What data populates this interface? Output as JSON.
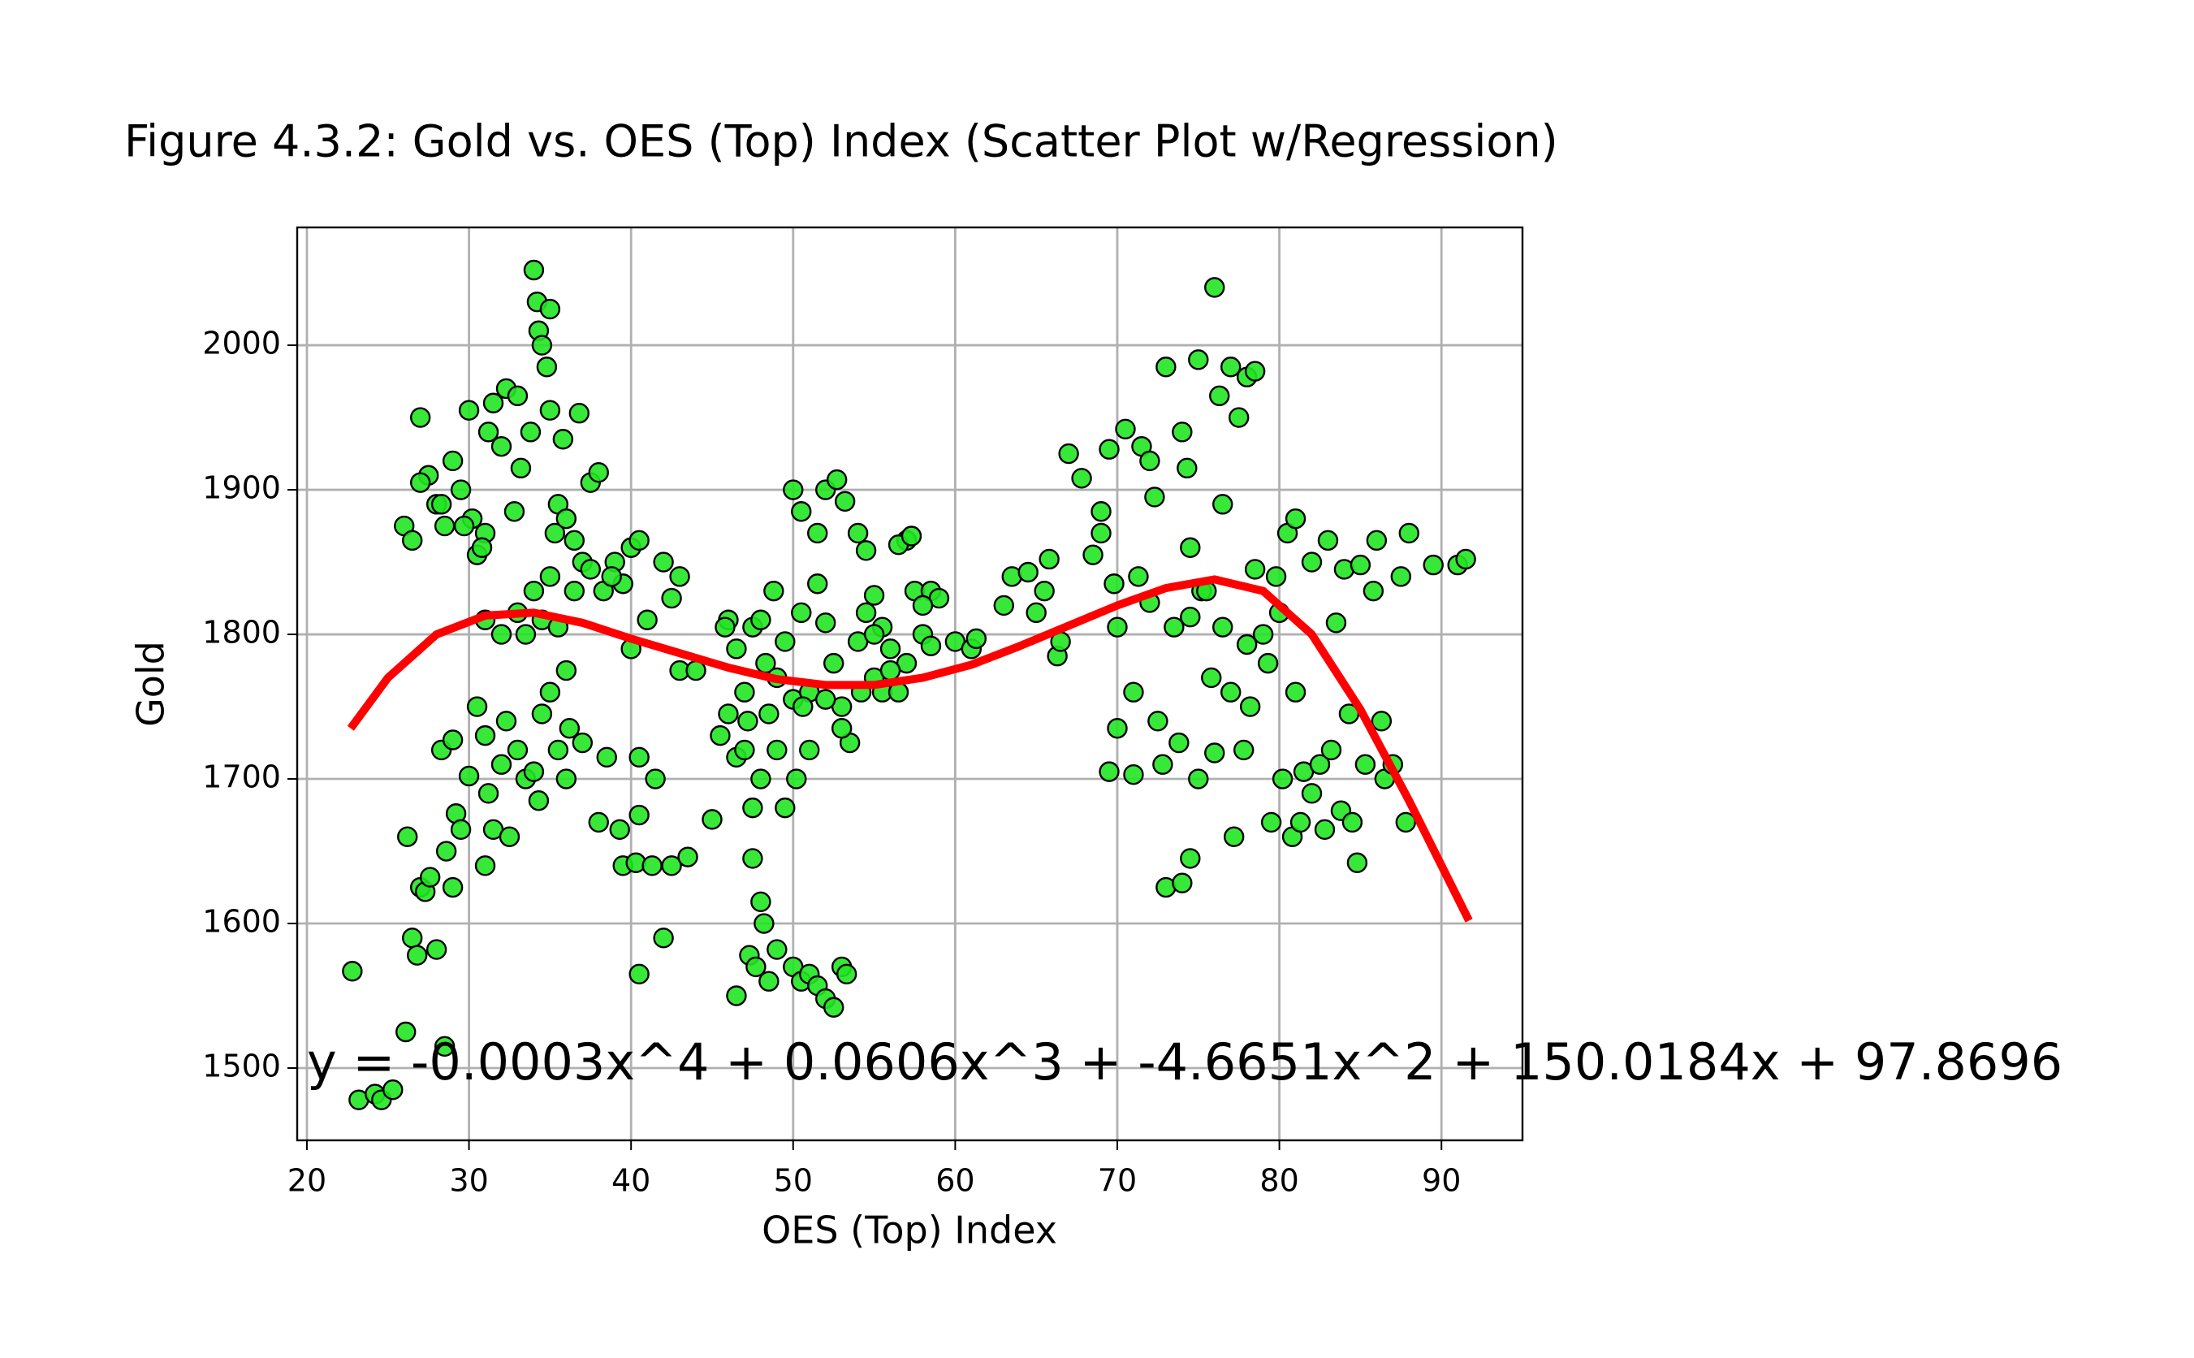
{
  "chart_data": {
    "type": "scatter",
    "title": "Figure 4.3.2: Gold vs. OES (Top) Index (Scatter Plot w/Regression)",
    "x_label": "OES (Top) Index",
    "y_label": "Gold",
    "annotation": "y = -0.0003x^4 + 0.0606x^3 + -4.6651x^2 + 150.0184x + 97.8696",
    "annotation_color": "#0000ff",
    "xlim": [
      19.4,
      95.0
    ],
    "ylim": [
      1450,
      2081.5
    ],
    "xticks": [
      20,
      30,
      40,
      50,
      60,
      70,
      80,
      90
    ],
    "yticks": [
      1500,
      1600,
      1700,
      1800,
      1900,
      2000
    ],
    "grid": true,
    "series": [
      {
        "type": "scatter",
        "color": "#22e622",
        "edge_color": "#000000",
        "x": [
          22.8,
          23.2,
          24.2,
          24.6,
          25.3,
          26.1,
          26.2,
          26.5,
          26.8,
          27,
          27.3,
          27.6,
          28,
          28.5,
          28.6,
          29,
          29.2,
          29.5,
          28.3,
          29,
          30,
          30.5,
          31,
          31.2,
          31.5,
          31,
          32,
          32.5,
          32.3,
          33,
          33.5,
          34,
          34.3,
          34.5,
          35,
          35.5,
          36,
          36.2,
          37,
          38,
          38.5,
          26,
          26.5,
          27,
          27.5,
          28,
          28.5,
          29,
          29.5,
          30,
          30.2,
          30.5,
          31,
          31.2,
          31.5,
          32,
          32.3,
          32.8,
          33,
          33.2,
          33.8,
          34,
          34.2,
          34.3,
          34.5,
          34.8,
          35,
          35,
          35.3,
          35.5,
          35.8,
          36,
          36.5,
          36.8,
          37,
          37.5,
          38,
          38.3,
          39,
          39.5,
          40,
          40.5,
          41,
          42,
          42.5,
          43,
          33,
          33.5,
          34,
          34.5,
          35,
          35.5,
          36,
          36.5,
          32,
          31,
          27,
          28.3,
          29.7,
          30.8,
          37.5,
          38.8,
          40,
          40.5,
          40.5,
          39.5,
          40.3,
          41.3,
          42,
          42.5,
          43.5,
          41.5,
          40.5,
          39.3,
          43,
          44,
          45,
          45.5,
          46,
          46.5,
          46.5,
          47,
          47.5,
          47.2,
          48,
          48.3,
          48.8,
          49,
          49.5,
          50,
          50.5,
          51,
          51.5,
          52,
          52.5,
          53,
          53.5,
          54,
          54.5,
          55,
          55.5,
          56,
          56.5,
          57,
          57.5,
          58,
          58.5,
          59,
          50,
          50.5,
          51.5,
          52,
          52.7,
          53.2,
          54,
          54.5,
          55,
          56.5,
          57.3,
          58,
          48,
          49.5,
          50.2,
          47.5,
          48,
          48.2,
          47.3,
          47.7,
          48.5,
          49,
          50,
          50.5,
          51,
          51.5,
          52,
          52.5,
          53,
          53.3,
          46.5,
          47.5,
          46,
          49,
          51,
          53,
          55.5,
          57,
          60,
          61,
          61.3,
          56,
          54.2,
          52,
          50.6,
          48.5,
          47,
          45.8,
          58.5,
          55,
          63,
          63.5,
          64.5,
          65,
          65.5,
          65.8,
          66.3,
          66.5,
          67,
          67.8,
          68.5,
          69,
          69,
          69.5,
          69.8,
          70,
          69.5,
          70,
          70.5,
          71,
          71,
          71.3,
          71.5,
          72,
          72.3,
          72.5,
          72.8,
          73,
          73,
          73.5,
          73.8,
          74,
          74,
          74.3,
          74.5,
          74.5,
          75,
          75,
          75.2,
          75.5,
          75.8,
          76,
          76,
          76.3,
          76.5,
          77,
          77,
          77.2,
          77.5,
          77.8,
          78,
          78.2,
          78.5,
          78.5,
          79,
          79.3,
          79.5,
          80,
          80.2,
          80.5,
          80.8,
          81,
          81,
          81.3,
          81.5,
          82,
          82.5,
          82.8,
          83,
          83.2,
          83.5,
          83.8,
          84,
          84.3,
          84.5,
          84.8,
          85,
          85.3,
          85.8,
          86,
          86.3,
          86.5,
          87,
          87.5,
          87.8,
          88,
          89.5,
          91,
          91.5,
          72,
          74.5,
          76.5,
          78,
          79.8,
          82
        ],
        "values": [
          1567,
          1478,
          1482,
          1478,
          1485,
          1525,
          1660,
          1590,
          1578,
          1625,
          1622,
          1632,
          1582,
          1515,
          1650,
          1625,
          1676,
          1665,
          1720,
          1727,
          1702,
          1750,
          1730,
          1690,
          1665,
          1640,
          1710,
          1660,
          1740,
          1720,
          1700,
          1705,
          1685,
          1745,
          1760,
          1720,
          1700,
          1735,
          1725,
          1670,
          1715,
          1875,
          1865,
          1950,
          1910,
          1890,
          1875,
          1920,
          1900,
          1955,
          1880,
          1855,
          1870,
          1940,
          1960,
          1930,
          1970,
          1885,
          1965,
          1915,
          1940,
          2052,
          2030,
          2010,
          2000,
          1985,
          2025,
          1955,
          1870,
          1890,
          1935,
          1880,
          1865,
          1953,
          1850,
          1905,
          1912,
          1830,
          1850,
          1835,
          1860,
          1865,
          1810,
          1850,
          1825,
          1840,
          1815,
          1800,
          1830,
          1810,
          1840,
          1805,
          1775,
          1830,
          1800,
          1810,
          1905,
          1890,
          1875,
          1860,
          1845,
          1840,
          1790,
          1715,
          1565,
          1640,
          1642,
          1640,
          1590,
          1640,
          1646,
          1700,
          1675,
          1665,
          1775,
          1775,
          1672,
          1730,
          1745,
          1715,
          1790,
          1760,
          1805,
          1740,
          1810,
          1780,
          1830,
          1720,
          1795,
          1755,
          1815,
          1760,
          1835,
          1808,
          1780,
          1750,
          1725,
          1795,
          1815,
          1770,
          1760,
          1790,
          1760,
          1865,
          1830,
          1800,
          1830,
          1825,
          1900,
          1885,
          1870,
          1900,
          1907,
          1892,
          1870,
          1858,
          1827,
          1862,
          1868,
          1820,
          1700,
          1680,
          1700,
          1645,
          1615,
          1600,
          1578,
          1570,
          1560,
          1582,
          1570,
          1560,
          1565,
          1557,
          1548,
          1542,
          1570,
          1565,
          1550,
          1680,
          1810,
          1770,
          1720,
          1735,
          1805,
          1780,
          1795,
          1790,
          1797,
          1775,
          1760,
          1755,
          1750,
          1745,
          1720,
          1805,
          1792,
          1800,
          1820,
          1840,
          1843,
          1815,
          1830,
          1852,
          1785,
          1795,
          1925,
          1908,
          1855,
          1885,
          1870,
          1928,
          1835,
          1805,
          1705,
          1735,
          1942,
          1703,
          1760,
          1840,
          1930,
          1920,
          1895,
          1740,
          1710,
          1985,
          1625,
          1805,
          1725,
          1628,
          1940,
          1915,
          1860,
          1645,
          1990,
          1700,
          1830,
          1830,
          1770,
          2040,
          1718,
          1965,
          1890,
          1985,
          1760,
          1660,
          1950,
          1720,
          1978,
          1750,
          1845,
          1982,
          1800,
          1780,
          1670,
          1815,
          1700,
          1870,
          1660,
          1880,
          1760,
          1670,
          1705,
          1850,
          1710,
          1665,
          1865,
          1720,
          1808,
          1678,
          1845,
          1745,
          1670,
          1642,
          1848,
          1710,
          1830,
          1865,
          1740,
          1700,
          1710,
          1840,
          1670,
          1870,
          1848,
          1848,
          1852,
          1822,
          1812,
          1805,
          1793,
          1840,
          1690
        ]
      },
      {
        "type": "line",
        "color": "#ff0000",
        "x": [
          22.7,
          25,
          28,
          31,
          34,
          37,
          40,
          43,
          46,
          49,
          52,
          55,
          58,
          61,
          64,
          67,
          70,
          73,
          76,
          79,
          82,
          85,
          88,
          91.7
        ],
        "values": [
          1735,
          1770,
          1800,
          1813,
          1815,
          1808,
          1797,
          1787,
          1777,
          1769,
          1765,
          1765,
          1770,
          1779,
          1792,
          1806,
          1820,
          1832,
          1838,
          1830,
          1800,
          1748,
          1685,
          1602
        ]
      }
    ]
  }
}
